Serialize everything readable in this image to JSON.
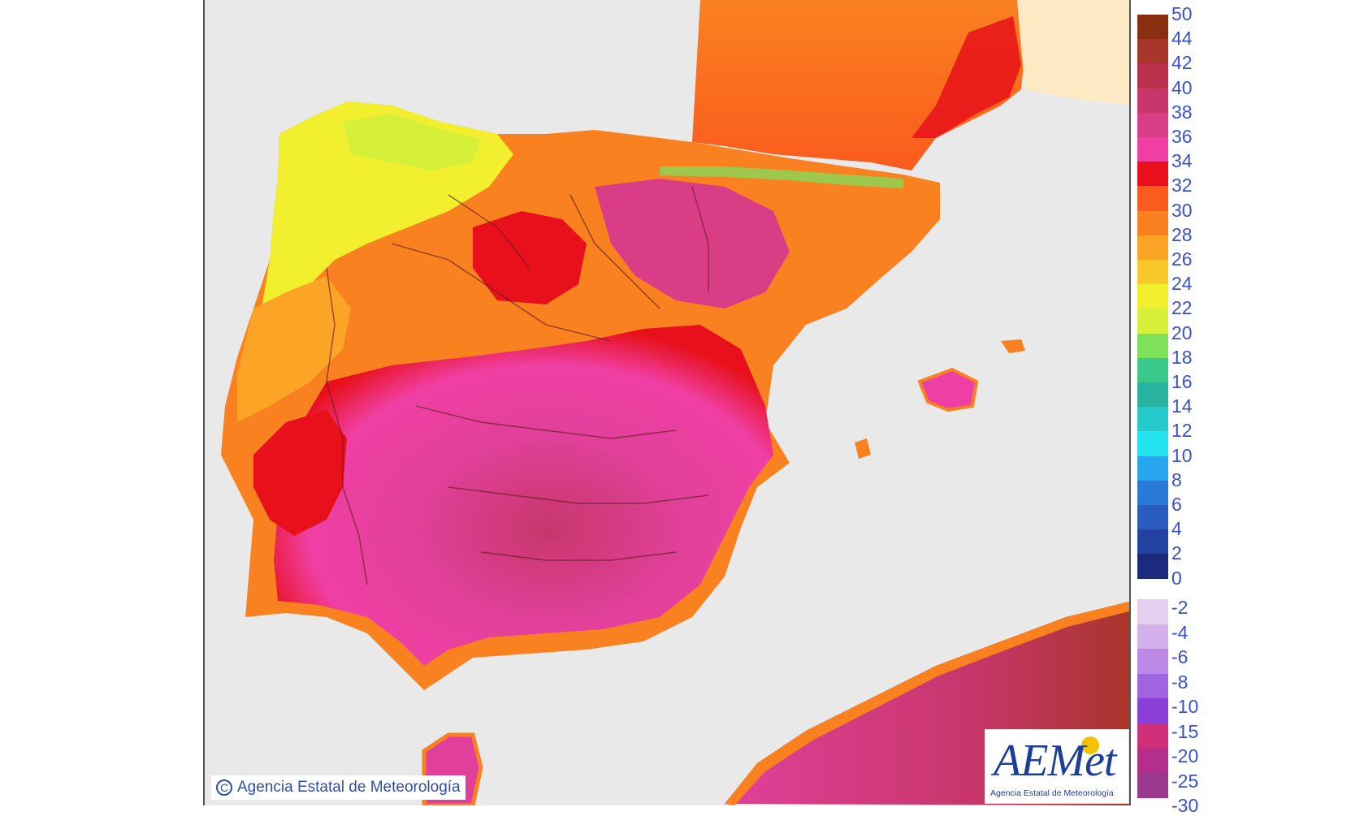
{
  "map": {
    "copyright_text": "Agencia Estatal de Meteorología",
    "logo_text": "AEMet",
    "logo_subtitle": "Agencia Estatal de Meteorología",
    "sea_color": "#e9e9e9",
    "france_color": "#fde9c4"
  },
  "legend": {
    "positive": {
      "labels": [
        "50",
        "44",
        "42",
        "40",
        "38",
        "36",
        "34",
        "32",
        "30",
        "28",
        "26",
        "24",
        "22",
        "20",
        "18",
        "16",
        "14",
        "12",
        "10",
        "8",
        "6",
        "4",
        "2",
        "0"
      ],
      "colors": [
        "#8a2e12",
        "#a8352a",
        "#b83049",
        "#c8366b",
        "#d83d86",
        "#f03fa4",
        "#e8101a",
        "#fb5b1d",
        "#f98120",
        "#fba425",
        "#f8c82b",
        "#f2f02e",
        "#d6f03a",
        "#7fe05a",
        "#3bc88a",
        "#27b3a0",
        "#24c9c9",
        "#23e4ee",
        "#27a6f0",
        "#2a7ad8",
        "#2a5cc0",
        "#2241a0",
        "#1b2a7d"
      ]
    },
    "negative": {
      "labels": [
        "-2",
        "-4",
        "-6",
        "-8",
        "-10",
        "-15",
        "-20",
        "-25",
        "-30"
      ],
      "colors": [
        "#e5d0f0",
        "#d3b2ec",
        "#bc8ae6",
        "#a064e0",
        "#8a40d8",
        "#d0307a",
        "#b42e8c",
        "#9a3890"
      ]
    },
    "icons": [
      "copyright-icon",
      "aemet-logo-icon"
    ]
  }
}
